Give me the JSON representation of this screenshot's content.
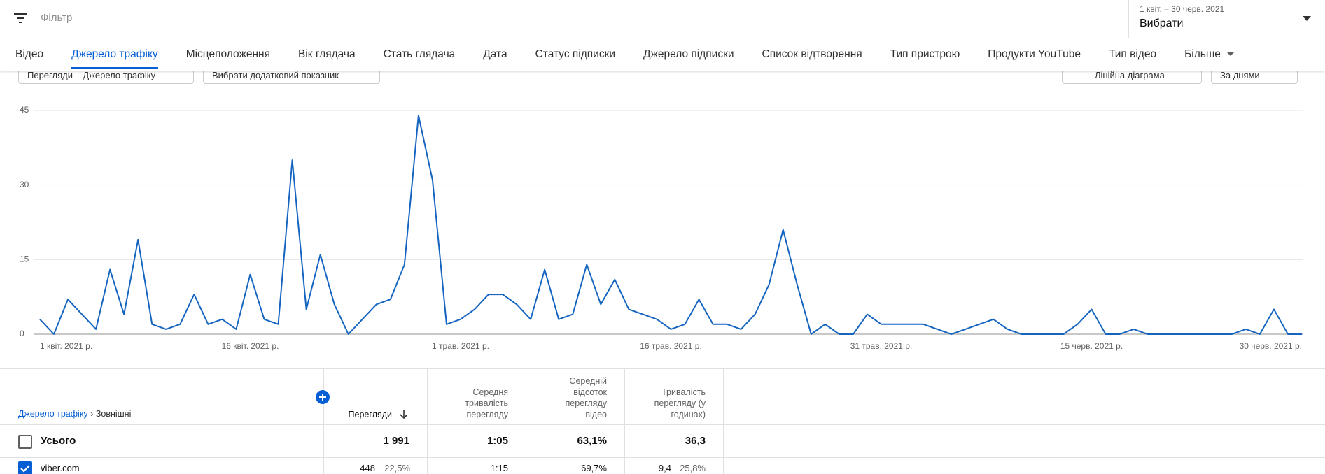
{
  "header": {
    "filter": "Фільтр",
    "date_range": "1 квіт. – 30 черв. 2021",
    "date_pick": "Вибрати"
  },
  "tabs": [
    "Відео",
    "Джерело трафіку",
    "Місцеположення",
    "Вік глядача",
    "Стать глядача",
    "Дата",
    "Статус підписки",
    "Джерело підписки",
    "Список відтворення",
    "Тип пристрою",
    "Продукти YouTube",
    "Тип відео",
    "Більше"
  ],
  "controls": {
    "metric": "Перегляди – Джерело трафіку",
    "extra": "Вибрати додатковий показник",
    "chart_type": "Лінійна діаграма",
    "period": "За днями"
  },
  "chart_data": {
    "type": "line",
    "color": "#1565c0",
    "grid": true,
    "categories": [
      "1 квіт. 2021 р.",
      null,
      null,
      null,
      null,
      null,
      null,
      null,
      null,
      null,
      null,
      null,
      null,
      null,
      null,
      "16 квіт. 2021 р.",
      null,
      null,
      null,
      null,
      null,
      null,
      null,
      null,
      null,
      null,
      null,
      null,
      null,
      null,
      "1 трав. 2021 р.",
      null,
      null,
      null,
      null,
      null,
      null,
      null,
      null,
      null,
      null,
      null,
      null,
      null,
      null,
      "16 трав. 2021 р.",
      null,
      null,
      null,
      null,
      null,
      null,
      null,
      null,
      null,
      null,
      null,
      null,
      null,
      null,
      "31 трав. 2021 р.",
      null,
      null,
      null,
      null,
      null,
      null,
      null,
      null,
      null,
      null,
      null,
      null,
      null,
      null,
      "15 черв. 2021 р.",
      null,
      null,
      null,
      null,
      null,
      null,
      null,
      null,
      null,
      null,
      null,
      null,
      null,
      null,
      "30 черв. 2021 р."
    ],
    "values": [
      3,
      0,
      7,
      4,
      1,
      13,
      4,
      19,
      2,
      1,
      2,
      8,
      2,
      3,
      1,
      12,
      3,
      2,
      35,
      5,
      16,
      6,
      0,
      3,
      6,
      7,
      14,
      44,
      31,
      2,
      3,
      5,
      8,
      8,
      6,
      3,
      13,
      3,
      4,
      14,
      6,
      11,
      5,
      4,
      3,
      1,
      2,
      7,
      2,
      2,
      1,
      4,
      10,
      21,
      10,
      0,
      2,
      0,
      0,
      4,
      2,
      2,
      2,
      2,
      1,
      0,
      1,
      2,
      3,
      1,
      0,
      0,
      0,
      0,
      2,
      5,
      0,
      0,
      1,
      0,
      0,
      0,
      0,
      0,
      0,
      0,
      1,
      0,
      5,
      0,
      0
    ],
    "ylim": [
      0,
      45
    ],
    "yticks": [
      0,
      15,
      30,
      45
    ]
  },
  "table": {
    "breadcrumb": [
      "Джерело трафіку",
      "Зовнішні"
    ],
    "headers": [
      "Перегляди",
      "Середня тривалість перегляду",
      "Середній відсоток перегляду відео",
      "Тривалість перегляду (у годинах)"
    ],
    "total": [
      "Усього",
      "1 991",
      "1:05",
      "63,1%",
      "36,3"
    ],
    "rows": [
      [
        "viber.com",
        "448",
        "22,5%",
        "1:15",
        "69,7%",
        "9,4",
        "25,8%"
      ]
    ]
  }
}
